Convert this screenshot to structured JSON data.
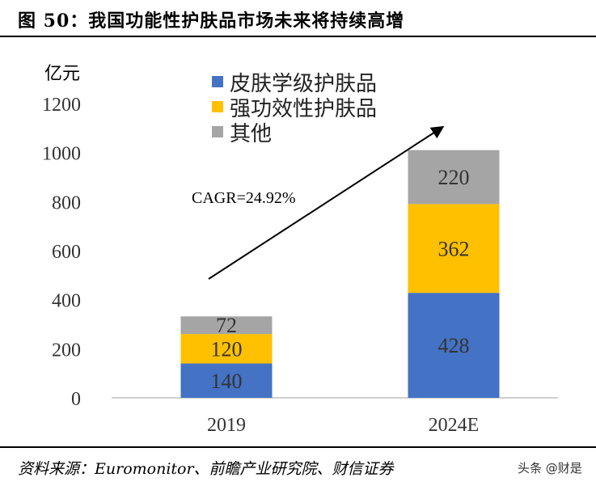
{
  "title": "图 50：我国功能性护肤品市场未来将持续高增",
  "source": "资料来源：Euromonitor、前瞻产业研究院、财信证券",
  "watermark": "头条 @财是",
  "chart_data": {
    "type": "bar",
    "stacked": true,
    "ylabel": "亿元",
    "ylim": [
      0,
      1200
    ],
    "yticks": [
      0,
      200,
      400,
      600,
      800,
      1000,
      1200
    ],
    "categories": [
      "2019",
      "2024E"
    ],
    "series": [
      {
        "name": "皮肤学级护肤品",
        "values": [
          140,
          428
        ],
        "color": "#4472C4"
      },
      {
        "name": "强功效性护肤品",
        "values": [
          120,
          362
        ],
        "color": "#FFC000"
      },
      {
        "name": "其他",
        "values": [
          72,
          220
        ],
        "color": "#A5A5A5"
      }
    ],
    "legend": "top",
    "grid": false,
    "annotation": "CAGR=24.92%"
  }
}
